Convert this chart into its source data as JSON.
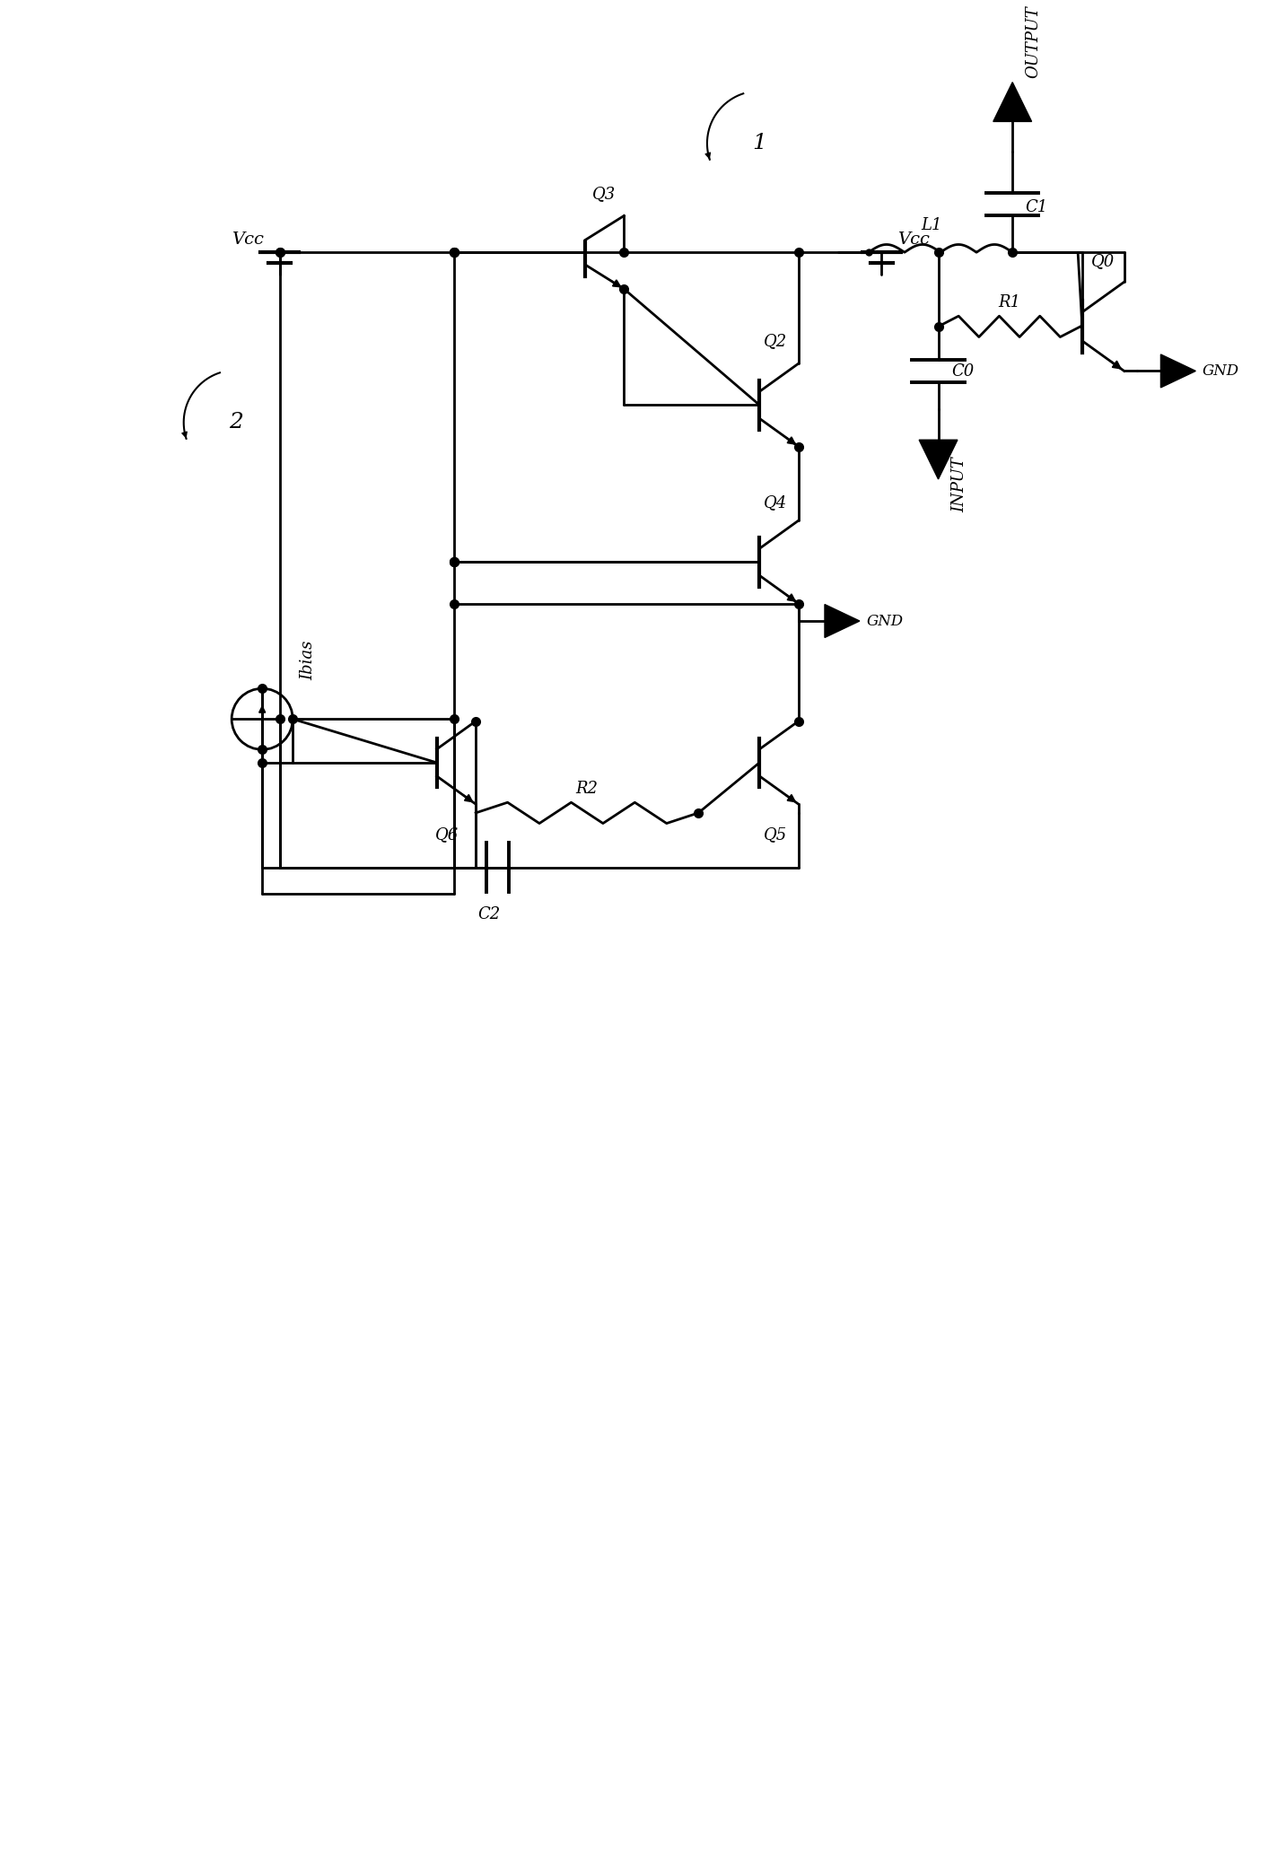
{
  "bg": "#ffffff",
  "lw": 2.0,
  "lc": "black",
  "labels": {
    "output": "OUTPUT",
    "input": "INPUT",
    "vcc_r": "Vcc",
    "vcc_l": "Vcc",
    "gnd_r": "GND",
    "gnd_l": "GND",
    "C1": "C1",
    "C2": "C2",
    "C0": "C0",
    "L1": "L1",
    "R1": "R1",
    "R2": "R2",
    "Q0": "Q0",
    "Q2": "Q2",
    "Q3": "Q3",
    "Q4": "Q4",
    "Q5": "Q5",
    "Q6": "Q6",
    "Ibias": "Ibias",
    "label1": "1",
    "label2": "2"
  },
  "fig_w": 14.33,
  "fig_h": 20.65
}
